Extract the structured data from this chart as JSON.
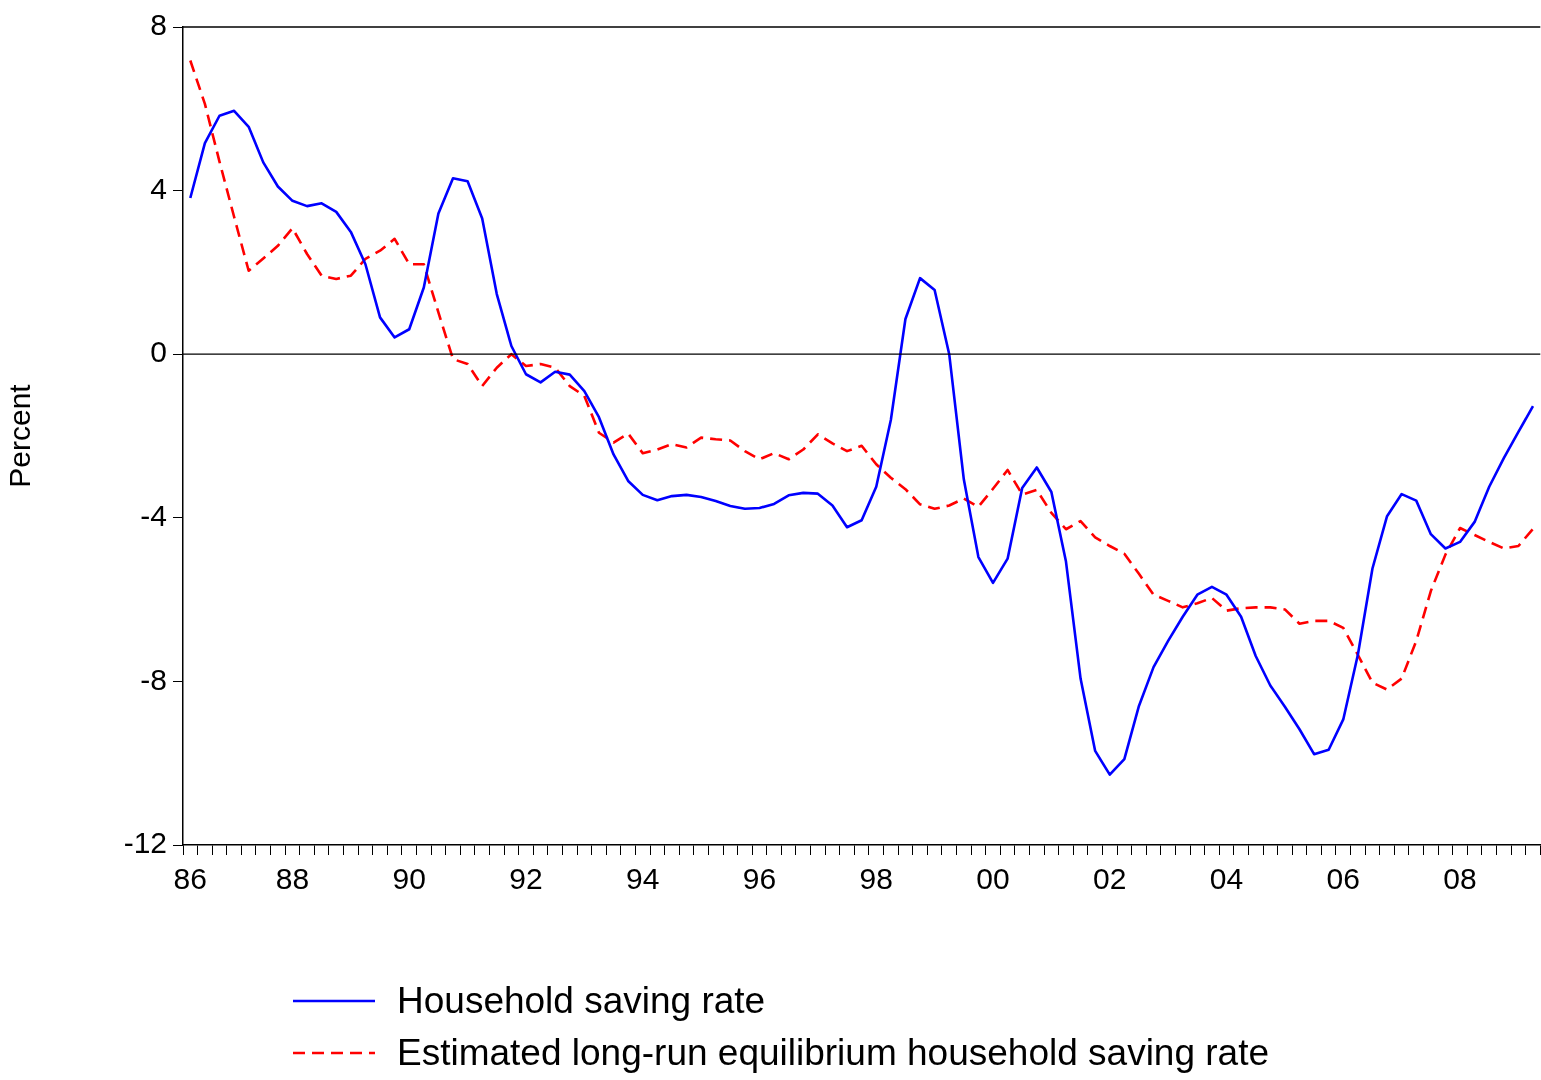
{
  "chart_data": {
    "type": "line",
    "ylabel": "Percent",
    "ylim": [
      -12,
      8
    ],
    "yticks": [
      -12,
      -8,
      -4,
      0,
      4,
      8
    ],
    "categories": [
      "86",
      null,
      null,
      null,
      null,
      null,
      null,
      "88",
      null,
      null,
      null,
      null,
      null,
      null,
      null,
      "90",
      null,
      null,
      null,
      null,
      null,
      null,
      null,
      "92",
      null,
      null,
      null,
      null,
      null,
      null,
      null,
      "94",
      null,
      null,
      null,
      null,
      null,
      null,
      null,
      "96",
      null,
      null,
      null,
      null,
      null,
      null,
      null,
      "98",
      null,
      null,
      null,
      null,
      null,
      null,
      null,
      "00",
      null,
      null,
      null,
      null,
      null,
      null,
      null,
      "02",
      null,
      null,
      null,
      null,
      null,
      null,
      null,
      "04",
      null,
      null,
      null,
      null,
      null,
      null,
      null,
      "06",
      null,
      null,
      null,
      null,
      null,
      null,
      null,
      "08",
      null,
      null,
      null,
      null,
      null
    ],
    "series": [
      {
        "name": "Household saving rate",
        "color": "#0000ff",
        "line_style": "solid",
        "values": [
          3.82,
          5.16,
          5.83,
          5.95,
          5.56,
          4.69,
          4.1,
          3.75,
          3.62,
          3.69,
          3.48,
          2.99,
          2.2,
          0.9,
          0.41,
          0.61,
          1.63,
          3.44,
          4.3,
          4.23,
          3.32,
          1.47,
          0.2,
          -0.49,
          -0.69,
          -0.43,
          -0.5,
          -0.9,
          -1.54,
          -2.45,
          -3.1,
          -3.44,
          -3.57,
          -3.47,
          -3.44,
          -3.49,
          -3.59,
          -3.71,
          -3.78,
          -3.76,
          -3.66,
          -3.45,
          -3.39,
          -3.41,
          -3.7,
          -4.23,
          -4.06,
          -3.24,
          -1.61,
          0.86,
          1.86,
          1.57,
          0.0,
          -3.06,
          -4.96,
          -5.59,
          -5.0,
          -3.27,
          -2.77,
          -3.37,
          -5.07,
          -7.93,
          -9.7,
          -10.28,
          -9.9,
          -8.6,
          -7.65,
          -7.01,
          -6.42,
          -5.88,
          -5.69,
          -5.88,
          -6.42,
          -7.38,
          -8.1,
          -8.62,
          -9.17,
          -9.78,
          -9.67,
          -8.93,
          -7.35,
          -5.24,
          -3.96,
          -3.42,
          -3.58,
          -4.4,
          -4.75,
          -4.59,
          -4.1,
          -3.24,
          -2.54,
          -1.9,
          -1.27
        ]
      },
      {
        "name": "Estimated long-run equilibrium household saving rate",
        "color": "#ff0000",
        "line_style": "dashed",
        "values": [
          7.18,
          6.12,
          4.71,
          3.36,
          2.04,
          2.34,
          2.65,
          3.08,
          2.45,
          1.92,
          1.84,
          1.92,
          2.33,
          2.53,
          2.82,
          2.2,
          2.2,
          1.02,
          -0.12,
          -0.24,
          -0.78,
          -0.33,
          0.0,
          -0.29,
          -0.24,
          -0.33,
          -0.78,
          -1.02,
          -1.92,
          -2.16,
          -1.94,
          -2.42,
          -2.33,
          -2.2,
          -2.28,
          -2.04,
          -2.08,
          -2.11,
          -2.37,
          -2.57,
          -2.42,
          -2.57,
          -2.33,
          -1.96,
          -2.18,
          -2.37,
          -2.24,
          -2.69,
          -3.02,
          -3.3,
          -3.67,
          -3.78,
          -3.7,
          -3.53,
          -3.73,
          -3.29,
          -2.83,
          -3.43,
          -3.32,
          -3.88,
          -4.28,
          -4.08,
          -4.48,
          -4.69,
          -4.88,
          -5.37,
          -5.88,
          -6.03,
          -6.19,
          -6.09,
          -5.96,
          -6.27,
          -6.21,
          -6.19,
          -6.19,
          -6.24,
          -6.59,
          -6.52,
          -6.52,
          -6.69,
          -7.35,
          -8.03,
          -8.2,
          -7.93,
          -7.01,
          -5.79,
          -4.9,
          -4.25,
          -4.42,
          -4.59,
          -4.75,
          -4.69,
          -4.27
        ]
      }
    ],
    "ref_lines": [
      {
        "axis": "y",
        "value": 0,
        "color": "#000000"
      }
    ],
    "grid": false,
    "legend": "bottom",
    "marker": "none"
  }
}
